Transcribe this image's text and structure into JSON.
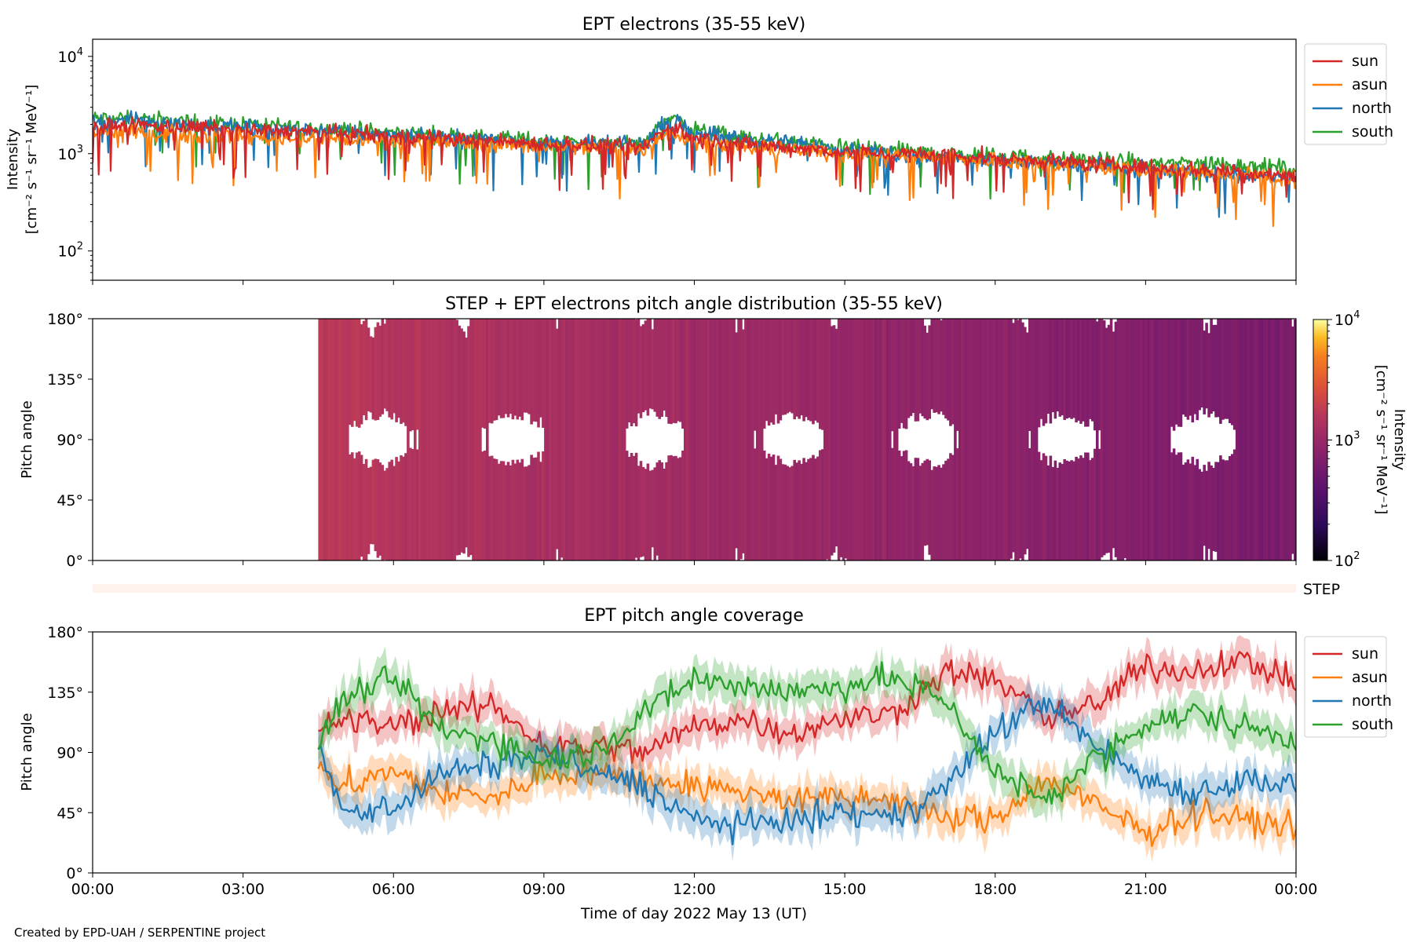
{
  "colors": {
    "sun": "#d62728",
    "asun": "#ff7f0e",
    "north": "#1f77b4",
    "south": "#2ca02c",
    "step_bar": "#fff1ec"
  },
  "credit": "Created by EPD-UAH / SERPENTINE project",
  "chart_data": [
    {
      "type": "line",
      "title": "EPT electrons (35-55 keV)",
      "ylabel_line1": "Intensity",
      "ylabel_line2": "[cm⁻² s⁻¹ sr⁻¹ MeV⁻¹]",
      "yscale": "log",
      "ylim": [
        50,
        15000
      ],
      "y_ticks": [
        {
          "value": 100,
          "label_base": "10",
          "label_exp": "2"
        },
        {
          "value": 1000,
          "label_base": "10",
          "label_exp": "3"
        },
        {
          "value": 10000,
          "label_base": "10",
          "label_exp": "4"
        }
      ],
      "xlim_hours": [
        0,
        24
      ],
      "legend": [
        "sun",
        "asun",
        "north",
        "south"
      ],
      "legend_position": "outside-right",
      "series": [
        {
          "name": "sun",
          "x_hours": [
            0,
            1,
            2,
            3,
            4,
            5,
            6,
            7,
            8,
            9,
            10,
            11,
            11.5,
            12,
            13,
            14,
            15,
            16,
            17,
            18,
            19,
            20,
            21,
            22,
            23,
            24
          ],
          "values": [
            1900,
            1950,
            1850,
            1750,
            1700,
            1600,
            1500,
            1420,
            1350,
            1280,
            1200,
            1150,
            1900,
            1450,
            1250,
            1150,
            1050,
            1000,
            950,
            900,
            850,
            780,
            720,
            680,
            640,
            600
          ]
        },
        {
          "name": "asun",
          "x_hours": [
            0,
            1,
            2,
            3,
            4,
            5,
            6,
            7,
            8,
            9,
            10,
            11,
            11.5,
            12,
            13,
            14,
            15,
            16,
            17,
            18,
            19,
            20,
            21,
            22,
            23,
            24
          ],
          "values": [
            1700,
            1650,
            1550,
            1500,
            1450,
            1400,
            1350,
            1300,
            1250,
            1200,
            1150,
            1100,
            1700,
            1350,
            1150,
            1080,
            1000,
            950,
            900,
            850,
            800,
            720,
            680,
            640,
            600,
            560
          ]
        },
        {
          "name": "north",
          "x_hours": [
            0,
            1,
            2,
            3,
            4,
            5,
            6,
            7,
            8,
            9,
            10,
            11,
            11.5,
            12,
            13,
            14,
            15,
            16,
            17,
            18,
            19,
            20,
            21,
            22,
            23,
            24
          ],
          "values": [
            2100,
            2200,
            2000,
            1850,
            1800,
            1650,
            1550,
            1450,
            1400,
            1300,
            1250,
            1250,
            2200,
            1700,
            1400,
            1250,
            1100,
            1000,
            900,
            850,
            800,
            720,
            680,
            650,
            600,
            560
          ]
        },
        {
          "name": "south",
          "x_hours": [
            0,
            1,
            2,
            3,
            4,
            5,
            6,
            7,
            8,
            9,
            10,
            11,
            11.5,
            12,
            13,
            14,
            15,
            16,
            17,
            18,
            19,
            20,
            21,
            22,
            23,
            24
          ],
          "values": [
            2300,
            2250,
            2100,
            2000,
            1900,
            1750,
            1650,
            1550,
            1450,
            1380,
            1300,
            1280,
            2500,
            1750,
            1450,
            1300,
            1150,
            1080,
            1000,
            950,
            900,
            850,
            800,
            820,
            760,
            700
          ]
        }
      ]
    },
    {
      "type": "heatmap",
      "title": "STEP + EPT electrons pitch angle distribution (35-55 keV)",
      "ylabel": "Pitch angle",
      "ylim": [
        0,
        180
      ],
      "y_ticks": [
        "0°",
        "45°",
        "90°",
        "135°",
        "180°"
      ],
      "data_start_hours": 4.5,
      "xlim_hours": [
        0,
        24
      ],
      "intensity_profile": {
        "x_hours": [
          4.5,
          6,
          8,
          10,
          11.5,
          13,
          15,
          17,
          19,
          21,
          24
        ],
        "values": [
          1700,
          1500,
          1350,
          1250,
          1150,
          1050,
          950,
          850,
          780,
          700,
          620
        ]
      },
      "colorbar": {
        "label_line1": "Intensity",
        "label_line2": "[cm⁻² s⁻¹ sr⁻¹ MeV⁻¹]",
        "scale": "log",
        "range": [
          100,
          10000
        ],
        "colormap": "inferno",
        "ticks": [
          {
            "value": 100,
            "label_base": "10",
            "label_exp": "2"
          },
          {
            "value": 1000,
            "label_base": "10",
            "label_exp": "3"
          },
          {
            "value": 10000,
            "label_base": "10",
            "label_exp": "4"
          }
        ]
      }
    },
    {
      "type": "bar",
      "label": "STEP",
      "xlim_hours": [
        0,
        24
      ]
    },
    {
      "type": "area",
      "title": "EPT pitch angle coverage",
      "ylabel": "Pitch angle",
      "ylim": [
        0,
        180
      ],
      "y_ticks": [
        "0°",
        "45°",
        "90°",
        "135°",
        "180°"
      ],
      "xlabel": "Time of day 2022 May 13 (UT)",
      "x_ticks": [
        "00:00",
        "03:00",
        "06:00",
        "09:00",
        "12:00",
        "15:00",
        "18:00",
        "21:00",
        "00:00"
      ],
      "xlim_hours": [
        0,
        24
      ],
      "legend": [
        "sun",
        "asun",
        "north",
        "south"
      ],
      "legend_position": "outside-right",
      "series": [
        {
          "name": "sun",
          "x_hours": [
            4.5,
            5,
            6,
            7,
            8,
            9,
            10,
            11,
            12,
            13,
            14,
            15,
            16,
            17,
            18,
            19,
            20,
            21,
            22,
            23,
            24
          ],
          "values": [
            105,
            115,
            110,
            120,
            125,
            95,
            95,
            90,
            110,
            115,
            105,
            115,
            120,
            150,
            145,
            115,
            125,
            155,
            150,
            160,
            140
          ]
        },
        {
          "name": "asun",
          "x_hours": [
            4.5,
            5,
            6,
            7,
            8,
            9,
            10,
            11,
            12,
            13,
            14,
            15,
            16,
            17,
            18,
            19,
            20,
            21,
            22,
            23,
            24
          ],
          "values": [
            80,
            65,
            75,
            60,
            55,
            75,
            75,
            70,
            65,
            60,
            55,
            55,
            55,
            40,
            40,
            70,
            50,
            30,
            45,
            40,
            35
          ]
        },
        {
          "name": "north",
          "x_hours": [
            4.5,
            5,
            6,
            7,
            8,
            9,
            10,
            11,
            12,
            13,
            14,
            15,
            16,
            17,
            18,
            19,
            20,
            21,
            22,
            23,
            24
          ],
          "values": [
            90,
            45,
            50,
            75,
            80,
            90,
            75,
            65,
            40,
            35,
            40,
            45,
            40,
            65,
            105,
            130,
            95,
            70,
            60,
            70,
            65
          ]
        },
        {
          "name": "south",
          "x_hours": [
            4.5,
            5,
            6,
            7,
            8,
            9,
            10,
            11,
            12,
            13,
            14,
            15,
            16,
            17,
            18,
            19,
            20,
            21,
            22,
            23,
            24
          ],
          "values": [
            95,
            130,
            145,
            105,
            100,
            85,
            90,
            120,
            145,
            140,
            135,
            140,
            145,
            130,
            75,
            55,
            85,
            110,
            120,
            110,
            100
          ]
        }
      ]
    }
  ]
}
